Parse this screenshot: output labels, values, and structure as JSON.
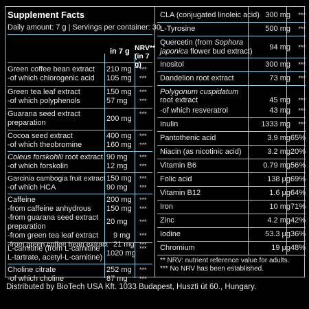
{
  "title": "Supplement Facts",
  "daily": "Daily amount: 7 g | Servings per container: 30",
  "col_in7g": "in 7 g",
  "col_nrv_1": "NRV**",
  "col_nrv_2": "(in 7 g)",
  "left_rows": [
    {
      "name1": "Green coffee bean extract",
      "amt1": "210 mg",
      "nrv1": "***",
      "name2": "-of which chlorogenic acid",
      "amt2": "105 mg",
      "nrv2": "***"
    },
    {
      "name1": "Green tea leaf extract",
      "amt1": "150 mg",
      "nrv1": "***",
      "name2": "-of which polyphenols",
      "amt2": "57 mg",
      "nrv2": "***"
    },
    {
      "name1": "Guarana seed extract",
      "name1b": "preparation",
      "amt1": "200 mg",
      "nrv1": "***"
    },
    {
      "name1": "Cocoa seed extract",
      "amt1": "400 mg",
      "nrv1": "***",
      "name2": "-of which theobromine",
      "amt2": "160 mg",
      "nrv2": "***"
    },
    {
      "name1_italic": "Coleus forskohlii",
      "name1_rest": " root extract",
      "amt1": "90 mg",
      "nrv1": "***",
      "name2": "-of which forskolin",
      "amt2": "12 mg",
      "nrv2": "***"
    },
    {
      "name1": "Garcinia cambogia fruit extract",
      "amt1": "150 mg",
      "nrv1": "***",
      "name2": "-of which HCA",
      "amt2": "90 mg",
      "nrv2": "***"
    },
    {
      "caffeine": "Caffeine",
      "caffeine_amt": "200 mg",
      "caffeine_nrv": "***",
      "c1": "-from caffeine anhydrous",
      "c1_amt": "150 mg",
      "c1_nrv": "***",
      "c2a": "-from guarana seed extract",
      "c2b": "preparation",
      "c2_amt": "20 mg",
      "c2_nrv": "***",
      "c3": "-from green tea leaf extract",
      "c3_amt": "9 mg",
      "c3_nrv": "***",
      "c4": "-from green coffee bean extract",
      "c4_amt": "21 mg",
      "c4_nrv": "***"
    },
    {
      "name1": "L-carnitine (from L-carnitine",
      "name1b": "L-tartrate, acetyl-L-carnitine)",
      "amt1": "1020 mg",
      "nrv1": "***"
    },
    {
      "name1": "Choline citrate",
      "amt1": "252 mg",
      "nrv1": "***",
      "name2": "-of which choline",
      "amt2": "87 mg",
      "nrv2": "***"
    }
  ],
  "right_rows": [
    {
      "name": "CLA (conjugated linoleic acid)",
      "amt": "300 mg",
      "nrv": "***"
    },
    {
      "name": "L-Tyrosine",
      "amt": "500 mg",
      "nrv": "***"
    },
    {
      "name_a": "Quercetin (from ",
      "name_i": "Sophora",
      "name_b": "japonica",
      "name_c": " flower bud extract)",
      "amt": "94 mg",
      "nrv": "***"
    },
    {
      "name": "Inositol",
      "amt": "300 mg",
      "nrv": "***"
    },
    {
      "name": "Dandelion root extract",
      "amt": "73 mg",
      "nrv": "***"
    },
    {
      "name_i1": "Polygonum cuspidatum",
      "name_b": "root extract",
      "amt": "45 mg",
      "nrv": "***",
      "sub": "-of which resveratrol",
      "sub_amt": "43 mg",
      "sub_nrv": "***"
    },
    {
      "name": "Inulin",
      "amt": "1333 mg",
      "nrv": "***"
    },
    {
      "name": "Pantothenic acid",
      "amt": "3.9 mg",
      "nrv": "65%"
    },
    {
      "name": "Niacin (as nicotinic acid)",
      "amt": "3.2 mg",
      "nrv": "20%"
    },
    {
      "name": "Vitamin B6",
      "amt": "0.79 mg",
      "nrv": "56%"
    },
    {
      "name": "Folic acid",
      "amt": "138 μg",
      "nrv": "69%"
    },
    {
      "name": "Vitamin B12",
      "amt": "1.6 μg",
      "nrv": "64%"
    },
    {
      "name": "Iron",
      "amt": "10 mg",
      "nrv": "71%"
    },
    {
      "name": "Zinc",
      "amt": "4.2 mg",
      "nrv": "42%"
    },
    {
      "name": "Iodine",
      "amt": "53.3 μg",
      "nrv": "36%"
    },
    {
      "name": "Chromium",
      "amt": "19 μg",
      "nrv": "48%"
    }
  ],
  "footnote1": "** NRV: nutrient reference value for adults.",
  "footnote2": "*** No NRV has been established.",
  "distributor": "Distributed by BioTech USA Kft. 1033 Budapest, Huszti út 60., Hungary.",
  "colors": {
    "border": "#8ccfe8",
    "background": "#000000",
    "text": "#e8e8e8"
  }
}
